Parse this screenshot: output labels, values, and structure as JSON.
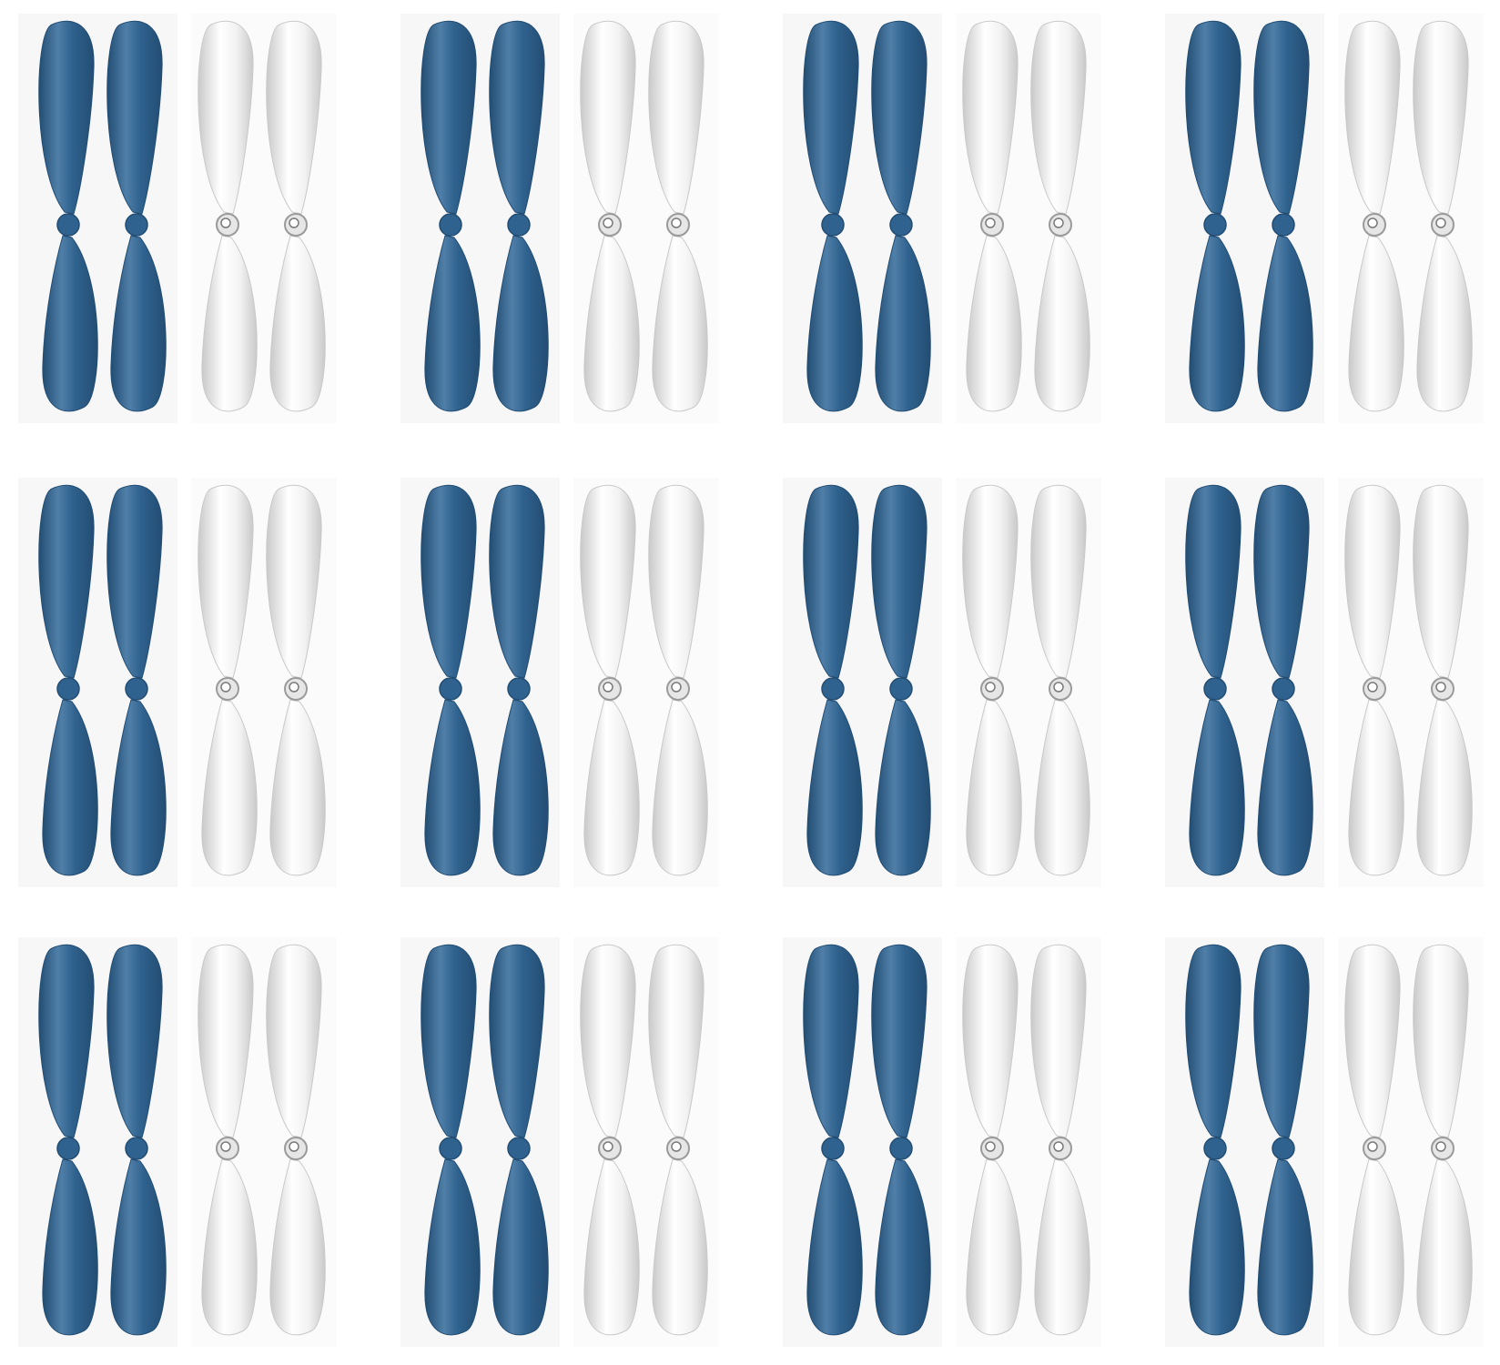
{
  "image": {
    "subject": "propeller-sets",
    "colors": {
      "blue": "#2f628e",
      "blue_dark": "#234d73",
      "blue_light": "#4f7fa8",
      "clear": "#f2f2f2",
      "clear_shade": "#c9c9c9",
      "hub_metal": "#9a9a9a",
      "backdrop": "#f7f7f7"
    },
    "grid": {
      "rows": 3,
      "columns": 4
    },
    "set": {
      "propellers": [
        {
          "color": "blue"
        },
        {
          "color": "blue"
        },
        {
          "color": "clear"
        },
        {
          "color": "clear"
        }
      ]
    }
  }
}
